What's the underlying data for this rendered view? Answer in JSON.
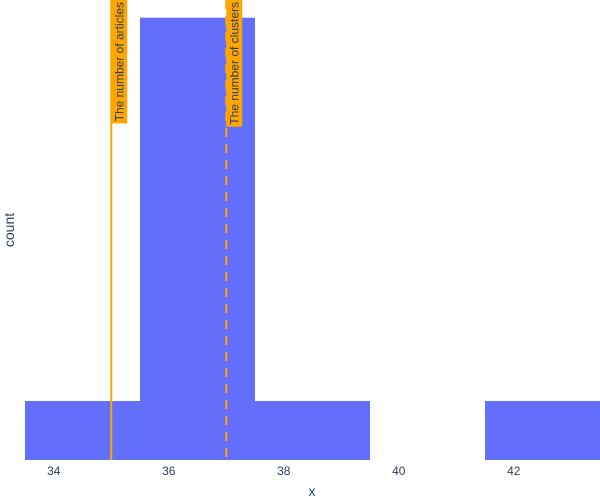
{
  "chart_data": {
    "type": "bar",
    "title": "",
    "xlabel": "x",
    "ylabel": "count",
    "x_range": [
      33.5,
      43.5
    ],
    "y_range": [
      0,
      7.8
    ],
    "bins": [
      {
        "x0": 33.5,
        "x1": 35.5,
        "count": 1
      },
      {
        "x0": 35.5,
        "x1": 37.5,
        "count": 7.5
      },
      {
        "x0": 37.5,
        "x1": 39.5,
        "count": 1
      },
      {
        "x0": 39.5,
        "x1": 41.5,
        "count": 0
      },
      {
        "x0": 41.5,
        "x1": 43.5,
        "count": 1
      }
    ],
    "x_ticks": [
      34,
      36,
      38,
      40,
      42
    ],
    "show_y_ticks": false,
    "grid": false,
    "colors": {
      "bar": "#636efa",
      "vline": "#ffa500",
      "text": "#2a3f5f",
      "label_background": "#ffa500"
    },
    "vlines": [
      {
        "x": 35,
        "dash": "solid",
        "label": "The number of articles"
      },
      {
        "x": 37,
        "dash": "dashed",
        "label": "The number of clusters"
      }
    ]
  }
}
